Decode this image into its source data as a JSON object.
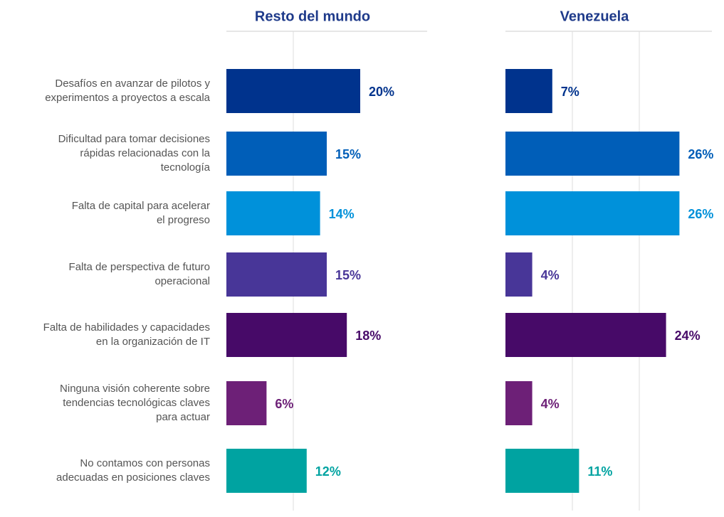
{
  "chart_data": [
    {
      "type": "hbar",
      "title": "Resto del mundo",
      "categories": [
        "Desafíos en avanzar de pilotos y\nexperimentos a proyectos a escala",
        "Dificultad para tomar decisiones\nrápidas relacionadas con la\ntecnología",
        "Falta de capital para acelerar\nel progreso",
        "Falta de perspectiva de futuro\noperacional",
        "Falta de habilidades y capacidades\nen la organización de IT",
        "Ninguna visión coherente sobre\ntendencias tecnológicas claves\npara actuar",
        "No contamos con personas\nadecuadas en posiciones claves"
      ],
      "values": [
        20,
        15,
        14,
        15,
        18,
        6,
        12
      ],
      "value_labels": [
        "20%",
        "15%",
        "14%",
        "15%",
        "18%",
        "6%",
        "12%"
      ],
      "colors": [
        "#00338d",
        "#005eb8",
        "#0091da",
        "#483698",
        "#470a68",
        "#6d2077",
        "#00a3a1"
      ],
      "xlim": [
        0,
        30
      ],
      "gridlines": [
        10
      ]
    },
    {
      "type": "hbar",
      "title": "Venezuela",
      "values": [
        7,
        26,
        26,
        4,
        24,
        4,
        11
      ],
      "value_labels": [
        "7%",
        "26%",
        "26%",
        "4%",
        "24%",
        "4%",
        "11%"
      ],
      "colors": [
        "#00338d",
        "#005eb8",
        "#0091da",
        "#483698",
        "#470a68",
        "#6d2077",
        "#00a3a1"
      ],
      "xlim": [
        0,
        30
      ],
      "gridlines": [
        10,
        20
      ]
    }
  ]
}
